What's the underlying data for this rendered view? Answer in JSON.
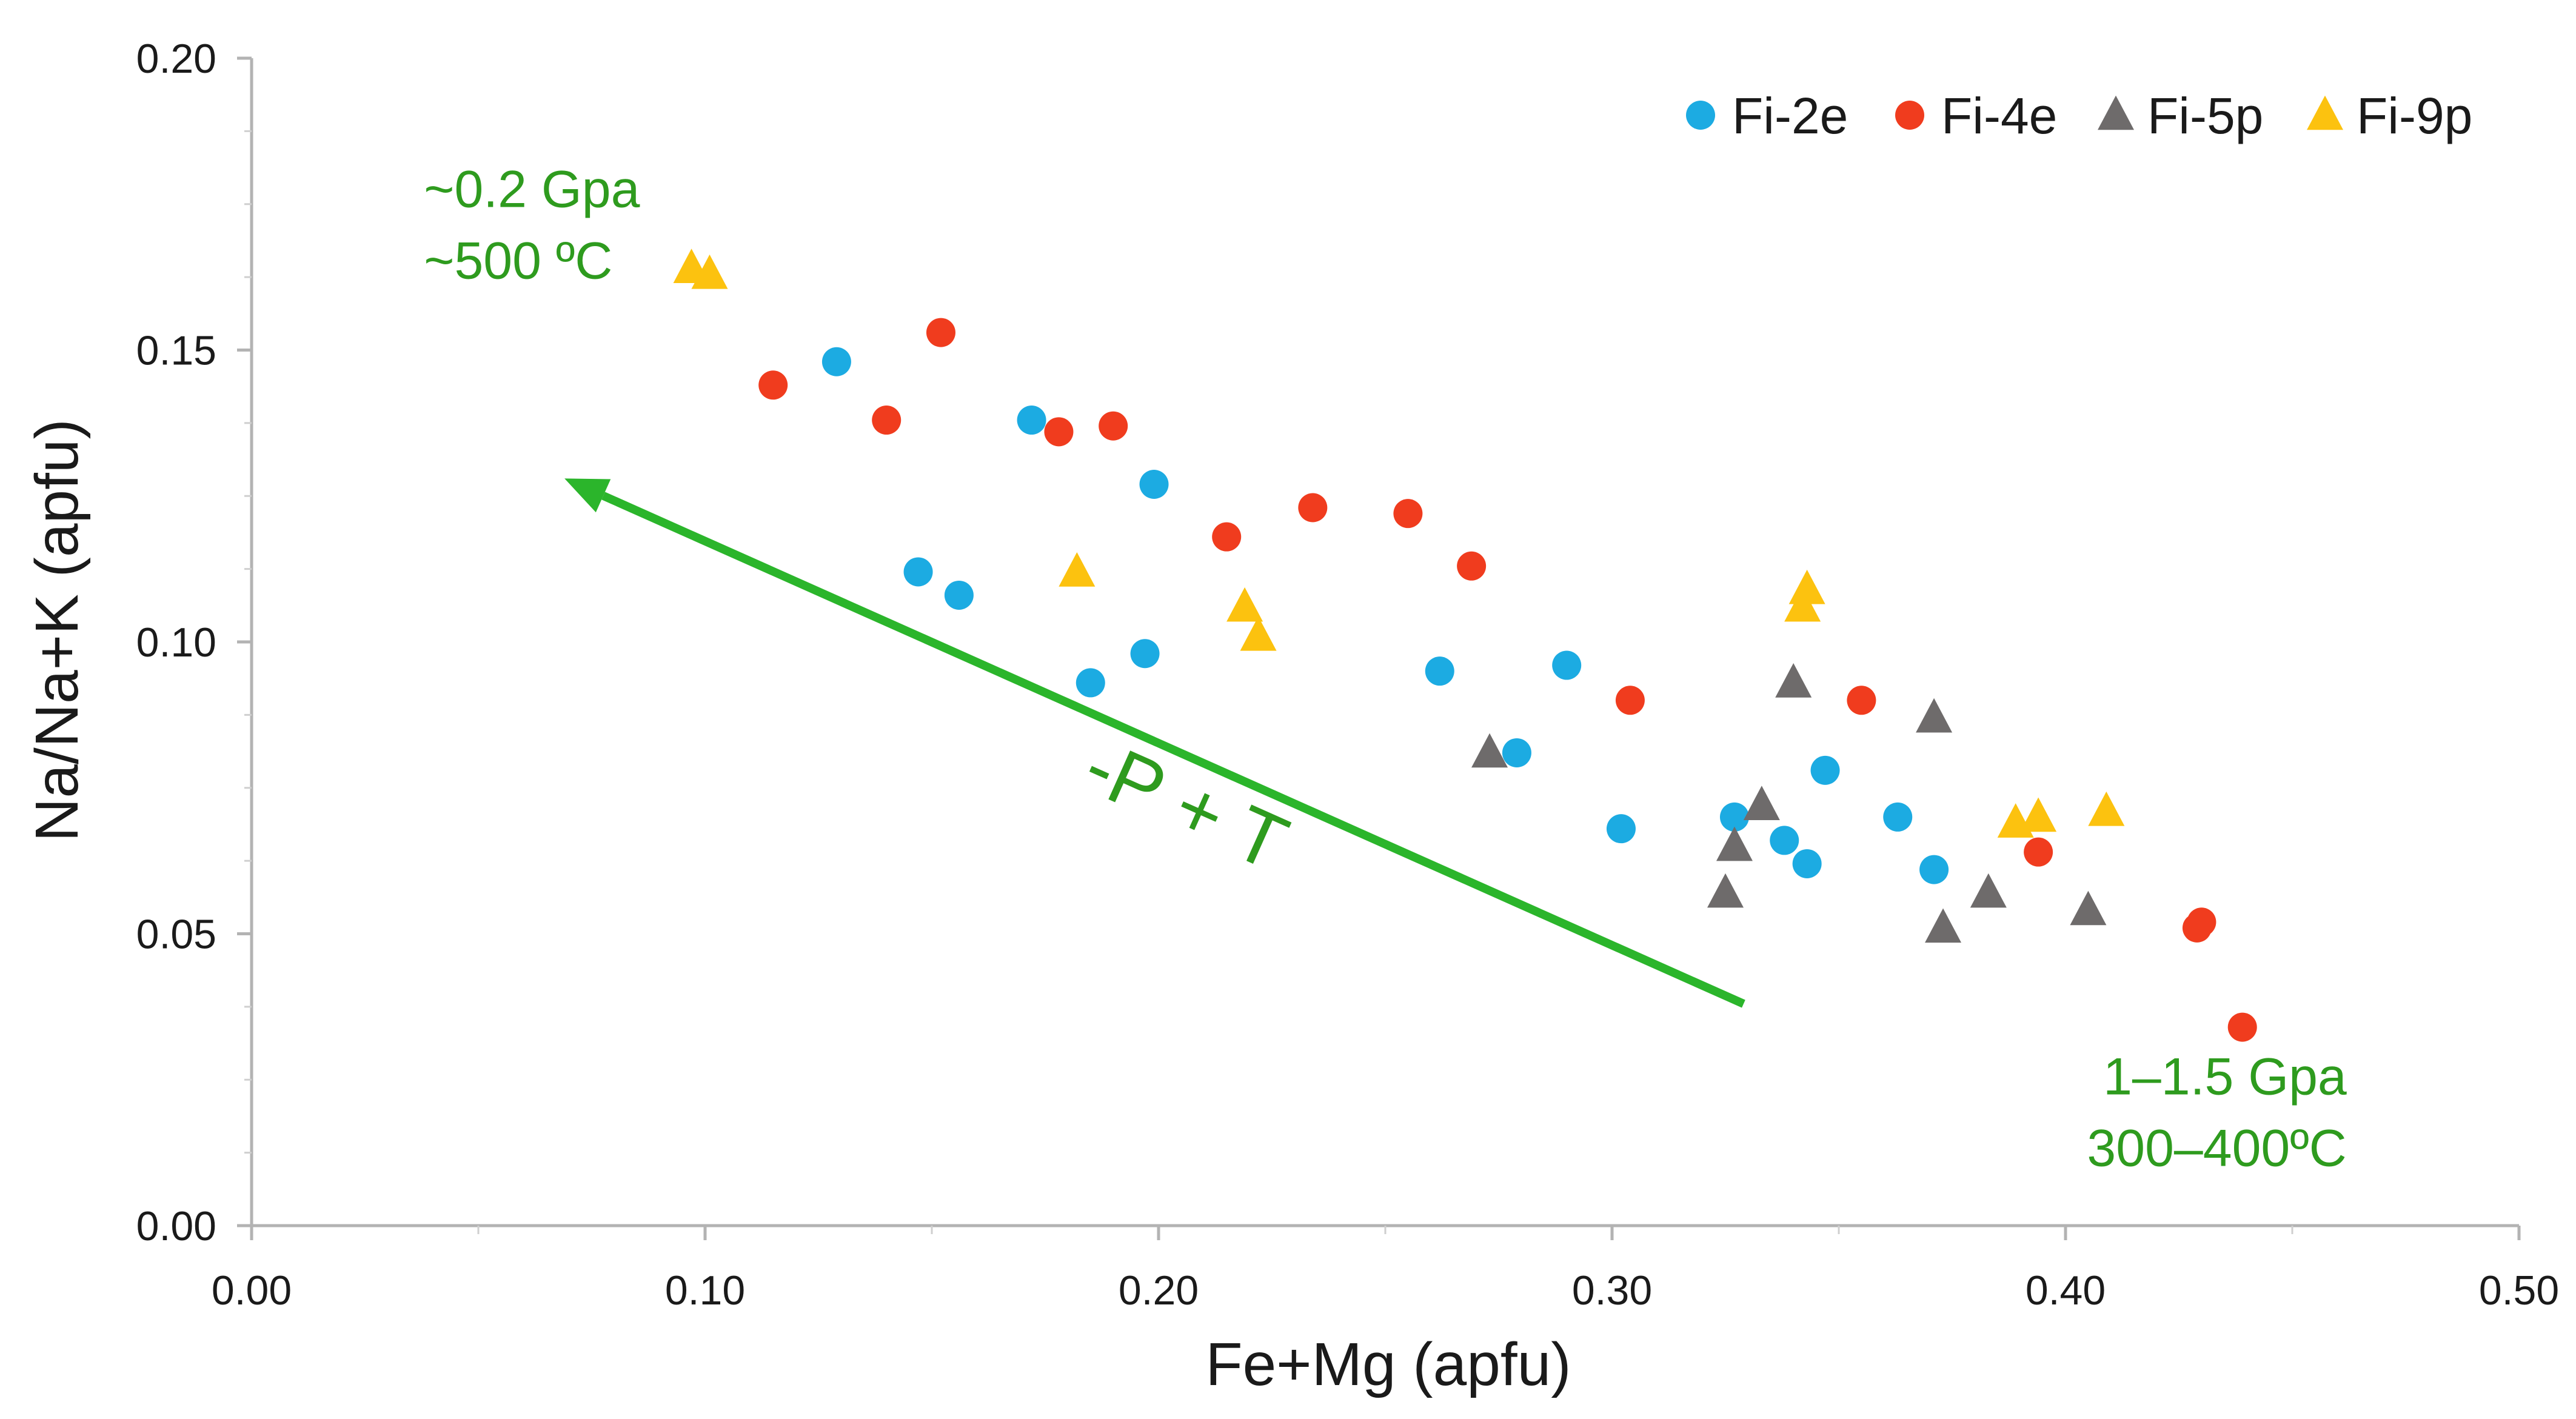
{
  "chart_data": {
    "type": "scatter",
    "title": "",
    "xlabel": "Fe+Mg (apfu)",
    "ylabel": "Na/Na+K (apfu)",
    "xlim": [
      0.0,
      0.5
    ],
    "ylim": [
      0.0,
      0.2
    ],
    "x_ticks": [
      "0.00",
      "0.10",
      "0.20",
      "0.30",
      "0.40",
      "0.50"
    ],
    "y_ticks": [
      "0.00",
      "0.05",
      "0.10",
      "0.15",
      "0.20"
    ],
    "grid": false,
    "legend_position": "top-right",
    "series": [
      {
        "name": "Fi-2e",
        "marker": "circle",
        "color": "#1cabe2",
        "points": [
          [
            0.129,
            0.148
          ],
          [
            0.147,
            0.112
          ],
          [
            0.156,
            0.108
          ],
          [
            0.172,
            0.138
          ],
          [
            0.185,
            0.093
          ],
          [
            0.197,
            0.098
          ],
          [
            0.199,
            0.127
          ],
          [
            0.262,
            0.095
          ],
          [
            0.279,
            0.081
          ],
          [
            0.29,
            0.096
          ],
          [
            0.302,
            0.068
          ],
          [
            0.327,
            0.07
          ],
          [
            0.338,
            0.066
          ],
          [
            0.343,
            0.062
          ],
          [
            0.347,
            0.078
          ],
          [
            0.363,
            0.07
          ],
          [
            0.371,
            0.061
          ]
        ]
      },
      {
        "name": "Fi-4e",
        "marker": "circle",
        "color": "#f03c1e",
        "points": [
          [
            0.115,
            0.144
          ],
          [
            0.14,
            0.138
          ],
          [
            0.152,
            0.153
          ],
          [
            0.178,
            0.136
          ],
          [
            0.19,
            0.137
          ],
          [
            0.215,
            0.118
          ],
          [
            0.234,
            0.123
          ],
          [
            0.255,
            0.122
          ],
          [
            0.269,
            0.113
          ],
          [
            0.304,
            0.09
          ],
          [
            0.355,
            0.09
          ],
          [
            0.394,
            0.064
          ],
          [
            0.429,
            0.051
          ],
          [
            0.43,
            0.052
          ],
          [
            0.439,
            0.034
          ]
        ]
      },
      {
        "name": "Fi-5p",
        "marker": "triangle",
        "color": "#6e6b6b",
        "points": [
          [
            0.273,
            0.081
          ],
          [
            0.325,
            0.057
          ],
          [
            0.327,
            0.065
          ],
          [
            0.333,
            0.072
          ],
          [
            0.34,
            0.093
          ],
          [
            0.371,
            0.087
          ],
          [
            0.373,
            0.051
          ],
          [
            0.383,
            0.057
          ],
          [
            0.405,
            0.054
          ]
        ]
      },
      {
        "name": "Fi-9p",
        "marker": "triangle",
        "color": "#fcc20f",
        "points": [
          [
            0.097,
            0.164
          ],
          [
            0.101,
            0.163
          ],
          [
            0.182,
            0.112
          ],
          [
            0.219,
            0.106
          ],
          [
            0.222,
            0.101
          ],
          [
            0.342,
            0.106
          ],
          [
            0.343,
            0.109
          ],
          [
            0.389,
            0.069
          ],
          [
            0.394,
            0.07
          ],
          [
            0.409,
            0.071
          ]
        ]
      }
    ],
    "trend_arrow": {
      "from": [
        0.329,
        0.038
      ],
      "to": [
        0.069,
        0.128
      ],
      "label": "-P + T",
      "color": "#2bb52b"
    },
    "annotations": [
      {
        "id": "low-pressure",
        "lines": [
          "~0.2 Gpa",
          "~500 ºC"
        ],
        "x": 0.038,
        "y": 0.1745,
        "align": "start"
      },
      {
        "id": "high-pressure",
        "lines": [
          "1–1.5  Gpa",
          "300–400ºC"
        ],
        "x": 0.462,
        "y": 0.0225,
        "align": "end"
      }
    ]
  }
}
